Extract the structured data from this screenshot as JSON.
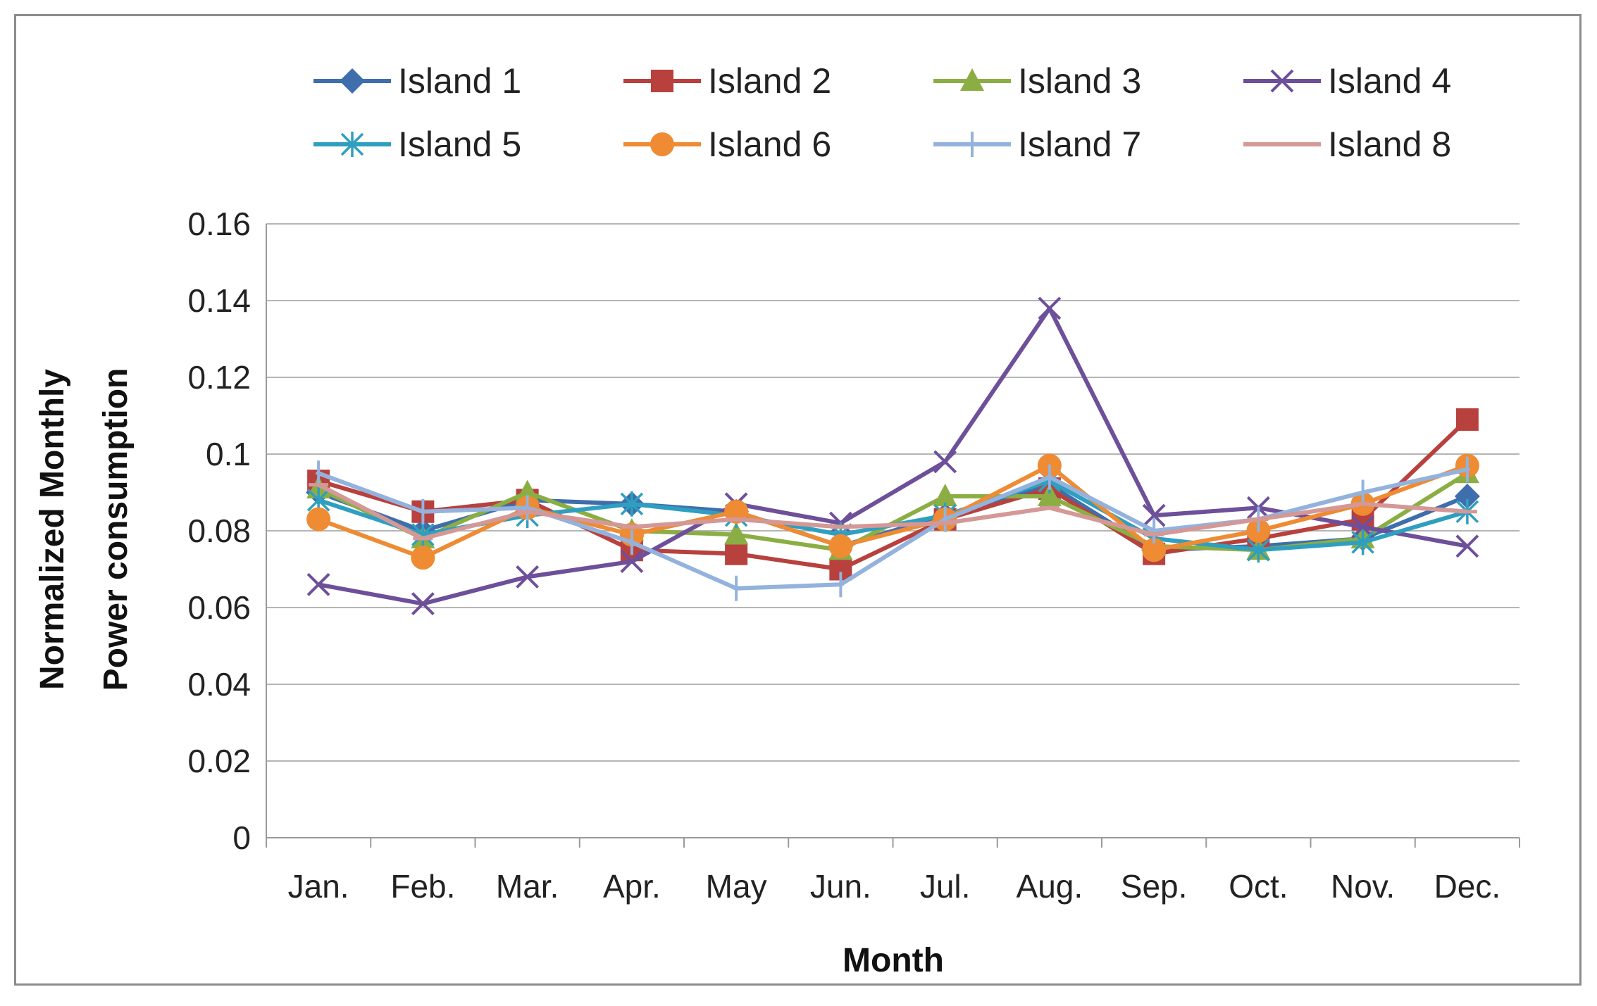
{
  "chart_data": {
    "type": "line",
    "title": "",
    "xlabel": "Month",
    "ylabel_lines": [
      "Normalized  Monthly",
      "Power consumption"
    ],
    "categories": [
      "Jan.",
      "Feb.",
      "Mar.",
      "Apr.",
      "May",
      "Jun.",
      "Jul.",
      "Aug.",
      "Sep.",
      "Oct.",
      "Nov.",
      "Dec."
    ],
    "ylim": [
      0,
      0.16
    ],
    "yticks": [
      0,
      0.02,
      0.04,
      0.06,
      0.08,
      0.1,
      0.12,
      0.14,
      0.16
    ],
    "ytick_labels": [
      "0",
      "0.02",
      "0.04",
      "0.06",
      "0.08",
      "0.1",
      "0.12",
      "0.14",
      "0.16"
    ],
    "grid": true,
    "legend_position": "top",
    "series": [
      {
        "name": "Island 1",
        "color": "#3E6EAC",
        "marker": "diamond",
        "values": [
          0.09,
          0.08,
          0.088,
          0.087,
          0.085,
          0.076,
          0.084,
          0.092,
          0.075,
          0.076,
          0.078,
          0.089
        ]
      },
      {
        "name": "Island 2",
        "color": "#B8403D",
        "marker": "square",
        "values": [
          0.093,
          0.085,
          0.088,
          0.075,
          0.074,
          0.07,
          0.083,
          0.091,
          0.074,
          0.078,
          0.083,
          0.109
        ]
      },
      {
        "name": "Island 3",
        "color": "#8BAE44",
        "marker": "triangle",
        "values": [
          0.091,
          0.078,
          0.09,
          0.08,
          0.079,
          0.075,
          0.089,
          0.089,
          0.076,
          0.075,
          0.078,
          0.095
        ]
      },
      {
        "name": "Island 4",
        "color": "#6E4F9A",
        "marker": "x",
        "values": [
          0.066,
          0.061,
          0.068,
          0.072,
          0.087,
          0.082,
          0.098,
          0.138,
          0.084,
          0.086,
          0.081,
          0.076
        ]
      },
      {
        "name": "Island 5",
        "color": "#2F9FC0",
        "marker": "star",
        "values": [
          0.088,
          0.079,
          0.084,
          0.087,
          0.084,
          0.079,
          0.084,
          0.093,
          0.078,
          0.075,
          0.077,
          0.085
        ]
      },
      {
        "name": "Island 6",
        "color": "#EE8B33",
        "marker": "circle",
        "values": [
          0.083,
          0.073,
          0.086,
          0.079,
          0.085,
          0.076,
          0.083,
          0.097,
          0.075,
          0.08,
          0.087,
          0.097
        ]
      },
      {
        "name": "Island 7",
        "color": "#93B2DD",
        "marker": "plus",
        "values": [
          0.095,
          0.085,
          0.086,
          0.077,
          0.065,
          0.066,
          0.083,
          0.094,
          0.08,
          0.083,
          0.09,
          0.096
        ]
      },
      {
        "name": "Island 8",
        "color": "#D49896",
        "marker": "dash",
        "values": [
          0.092,
          0.078,
          0.085,
          0.081,
          0.083,
          0.081,
          0.082,
          0.086,
          0.079,
          0.083,
          0.087,
          0.085
        ]
      }
    ]
  }
}
